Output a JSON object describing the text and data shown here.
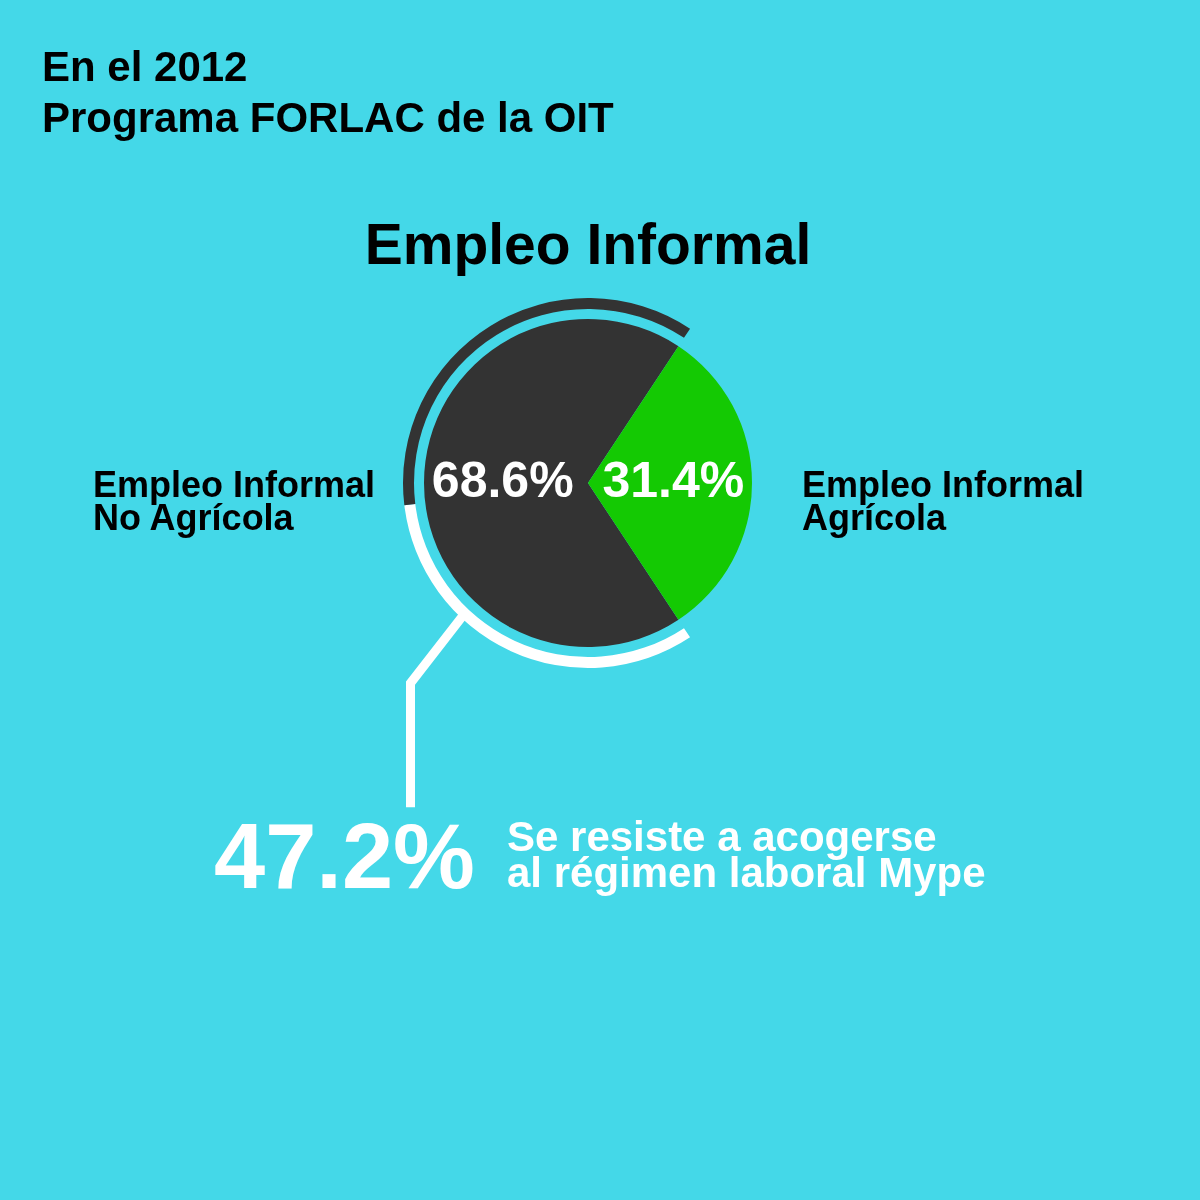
{
  "chart_data": {
    "type": "pie",
    "title": "Empleo Informal",
    "categories": [
      "Empleo Informal No Agrícola",
      "Empleo Informal Agrícola"
    ],
    "series": [
      {
        "values": [
          68.6,
          31.4
        ],
        "colors": [
          "#333333",
          "#14c903"
        ],
        "value_labels": [
          "68.6%",
          "31.4%"
        ]
      },
      {
        "type": "donut",
        "values": [
          47.2,
          52.8
        ],
        "colors": [
          "#ffffff",
          "#333333"
        ],
        "value_labels": [
          "47.2%",
          null
        ]
      }
    ],
    "annotations": [
      "En el 2012",
      "Programa FORLAC de la OIT",
      "Se resiste a acogerse al régimen laboral Mype"
    ]
  }
}
